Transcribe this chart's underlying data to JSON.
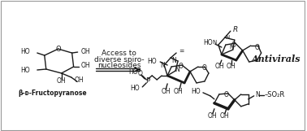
{
  "background_color": "#ffffff",
  "fig_width": 3.78,
  "fig_height": 1.61,
  "dpi": 100,
  "left_label": "β-D-Fructopyranose",
  "arrow_text_line1": "Access to",
  "arrow_text_line2": "diverse spiro-",
  "arrow_text_line3": "nucleosides",
  "antivirals_text": "Antivirals",
  "border_color": "#999999",
  "text_color": "#000000",
  "structure_color": "#1a1a1a",
  "arrow_color": "#000000"
}
